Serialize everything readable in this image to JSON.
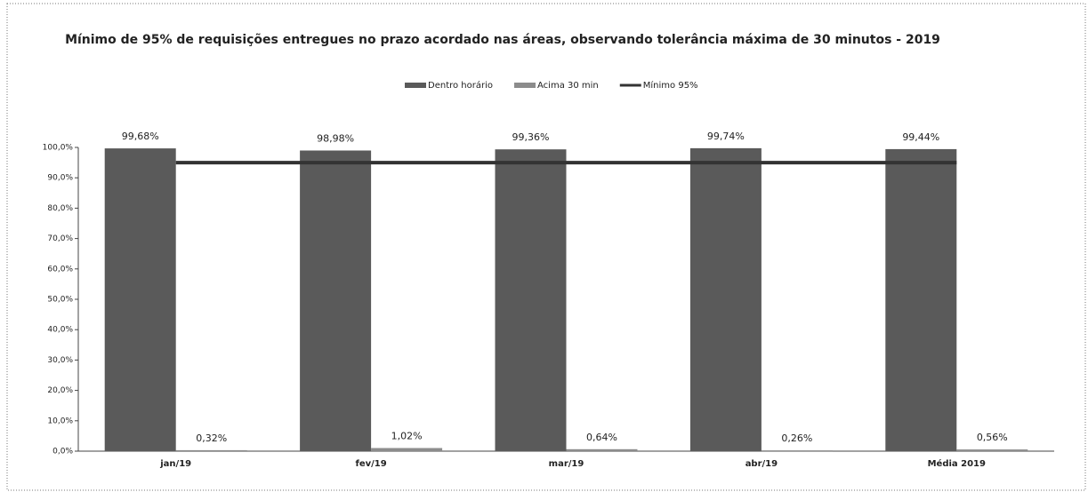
{
  "chart_data": {
    "type": "bar",
    "title": "Mínimo de 95% de requisições entregues no prazo acordado nas áreas, observando tolerância máxima de 30 minutos - 2019",
    "categories": [
      "jan/19",
      "fev/19",
      "mar/19",
      "abr/19",
      "Média 2019"
    ],
    "series": [
      {
        "name": "Dentro horário",
        "color": "#5a5a5a",
        "values": [
          99.68,
          98.98,
          99.36,
          99.74,
          99.44
        ],
        "value_labels": [
          "99,68%",
          "98,98%",
          "99,36%",
          "99,74%",
          "99,44%"
        ]
      },
      {
        "name": "Acima 30 min",
        "color": "#8c8c8c",
        "values": [
          0.32,
          1.02,
          0.64,
          0.26,
          0.56
        ],
        "value_labels": [
          "0,32%",
          "1,02%",
          "0,64%",
          "0,26%",
          "0,56%"
        ]
      },
      {
        "name": "Mínimo 95%",
        "type": "line",
        "color": "#333333",
        "values": [
          95,
          95,
          95,
          95,
          95
        ]
      }
    ],
    "ylim": [
      0,
      100
    ],
    "yticks": [
      {
        "value": 0,
        "label": "0,0%"
      },
      {
        "value": 10,
        "label": "10,0%"
      },
      {
        "value": 20,
        "label": "20,0%"
      },
      {
        "value": 30,
        "label": "30,0%"
      },
      {
        "value": 40,
        "label": "40,0%"
      },
      {
        "value": 50,
        "label": "50,0%"
      },
      {
        "value": 60,
        "label": "60,0%"
      },
      {
        "value": 70,
        "label": "70,0%"
      },
      {
        "value": 80,
        "label": "80,0%"
      },
      {
        "value": 90,
        "label": "90,0%"
      },
      {
        "value": 100,
        "label": "100,0%"
      }
    ],
    "legend": "top"
  }
}
